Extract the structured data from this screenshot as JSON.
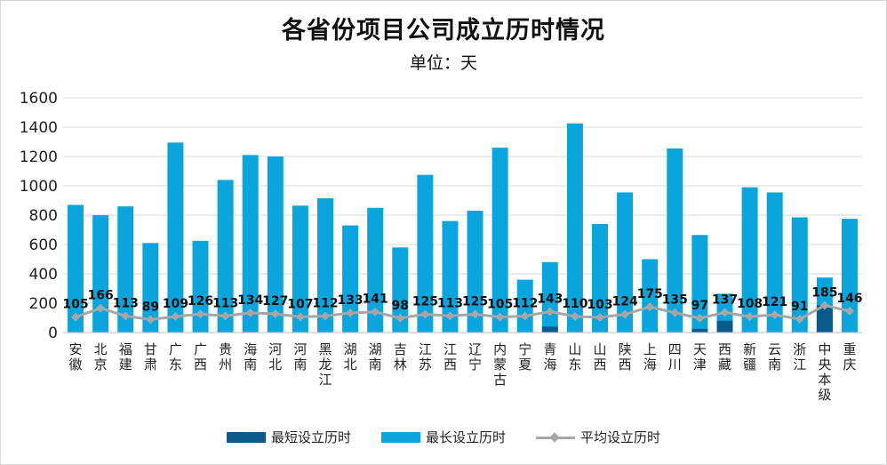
{
  "chart_data": {
    "type": "bar",
    "title": "各省份项目公司成立历时情况",
    "subtitle": "单位：天",
    "ylim": [
      0,
      1600
    ],
    "yticks": [
      0,
      200,
      400,
      600,
      800,
      1000,
      1200,
      1400,
      1600
    ],
    "grid": true,
    "legend_position": "bottom",
    "categories": [
      "安徽",
      "北京",
      "福建",
      "甘肃",
      "广东",
      "广西",
      "贵州",
      "海南",
      "河北",
      "河南",
      "黑龙江",
      "湖北",
      "湖南",
      "吉林",
      "江苏",
      "江西",
      "辽宁",
      "内蒙古",
      "宁夏",
      "青海",
      "山东",
      "山西",
      "陕西",
      "上海",
      "四川",
      "天津",
      "西藏",
      "新疆",
      "云南",
      "浙江",
      "中央本级",
      "重庆"
    ],
    "series": [
      {
        "name": "最短设立历时",
        "type": "bar",
        "color": "#0a5a8c",
        "values": [
          1,
          1,
          1,
          1,
          1,
          1,
          1,
          1,
          1,
          1,
          1,
          1,
          1,
          1,
          1,
          1,
          1,
          1,
          1,
          40,
          1,
          1,
          1,
          1,
          1,
          25,
          80,
          1,
          1,
          1,
          185,
          1
        ]
      },
      {
        "name": "最长设立历时",
        "type": "bar",
        "color": "#0ba5dd",
        "values": [
          870,
          800,
          860,
          610,
          1295,
          625,
          1040,
          1210,
          1200,
          865,
          915,
          730,
          850,
          580,
          1075,
          760,
          830,
          1260,
          360,
          480,
          1425,
          740,
          955,
          500,
          1255,
          665,
          265,
          990,
          955,
          785,
          375,
          775
        ]
      },
      {
        "name": "平均设立历时",
        "type": "line",
        "color": "#a6a6a6",
        "values": [
          105,
          166,
          113,
          89,
          109,
          126,
          113,
          134,
          127,
          107,
          112,
          133,
          141,
          98,
          125,
          113,
          125,
          105,
          112,
          143,
          110,
          103,
          124,
          175,
          135,
          97,
          137,
          108,
          121,
          91,
          185,
          146
        ]
      }
    ]
  }
}
